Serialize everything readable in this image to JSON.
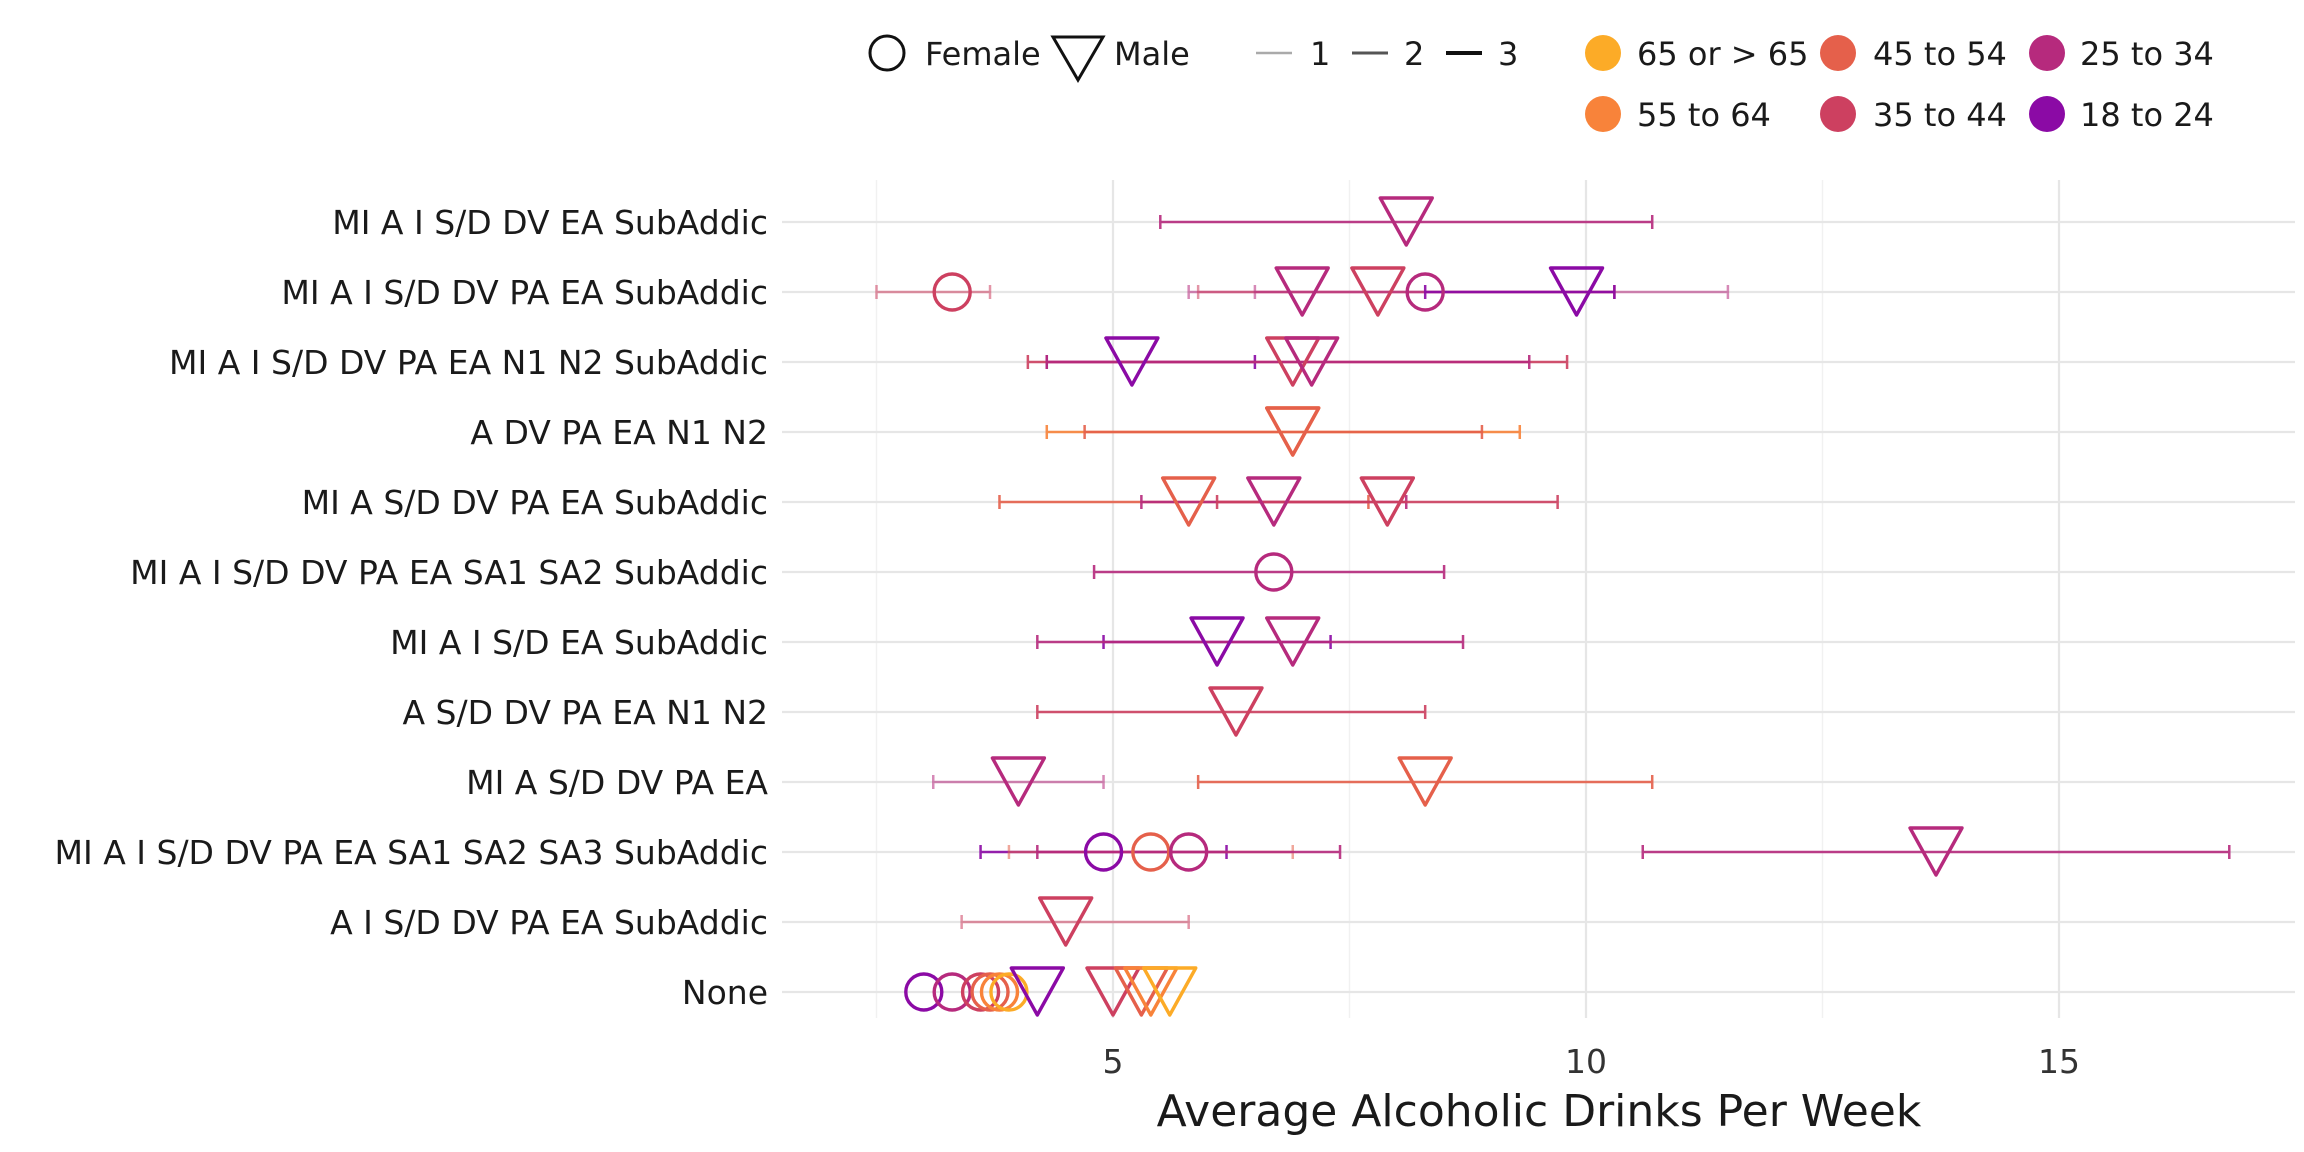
{
  "chart_data": {
    "type": "scatter",
    "xlabel": "Average Alcoholic Drinks Per Week",
    "xlim": [
      0,
      16.7
    ],
    "xticks": [
      5,
      10,
      15
    ],
    "x_minor": [
      2.5,
      7.5,
      12.5
    ],
    "grid": true,
    "legend_position": "top",
    "categories": [
      "MI A I S/D DV EA SubAddic",
      "MI A I S/D DV PA EA SubAddic",
      "MI A I S/D DV PA EA N1 N2 SubAddic",
      "A DV PA EA N1 N2",
      "MI A S/D DV PA EA SubAddic",
      "MI A I S/D DV PA EA SA1 SA2 SubAddic",
      "MI A I S/D EA SubAddic",
      "A S/D DV PA EA N1 N2",
      "MI A S/D DV PA EA",
      "MI A I S/D DV PA EA SA1 SA2 SA3 SubAddic",
      "A I S/D DV PA EA SubAddic",
      "None"
    ],
    "legend": {
      "sex": [
        {
          "key": "female",
          "label": "Female",
          "shape": "circle"
        },
        {
          "key": "male",
          "label": "Male",
          "shape": "triangle-down"
        }
      ],
      "count": [
        {
          "label": "1",
          "width": 2
        },
        {
          "label": "2",
          "width": 3
        },
        {
          "label": "3",
          "width": 4
        }
      ],
      "age": [
        {
          "key": "65+",
          "label": "65 or > 65",
          "color": "#fcab27"
        },
        {
          "key": "45-54",
          "label": "45 to 54",
          "color": "#e5604b"
        },
        {
          "key": "25-34",
          "label": "25 to 34",
          "color": "#b62a7d"
        },
        {
          "key": "55-64",
          "label": "55 to 64",
          "color": "#f8833a"
        },
        {
          "key": "35-44",
          "label": "35 to 44",
          "color": "#cd4060"
        },
        {
          "key": "18-24",
          "label": "18 to 24",
          "color": "#8b0aa5"
        }
      ]
    },
    "points": [
      {
        "cat": 0,
        "x": 8.1,
        "low": 5.5,
        "high": 10.7,
        "sex": "male",
        "age": "25-34"
      },
      {
        "cat": 1,
        "x": 3.3,
        "low": 2.5,
        "high": 3.7,
        "sex": "female",
        "age": "35-44",
        "faint": true
      },
      {
        "cat": 1,
        "x": 7.0,
        "low": 5.8,
        "high": 11.5,
        "sex": "male",
        "age": "25-34",
        "faint": true
      },
      {
        "cat": 1,
        "x": 7.8,
        "low": 5.9,
        "high": 10.3,
        "sex": "male",
        "age": "35-44",
        "faint": true
      },
      {
        "cat": 1,
        "x": 8.3,
        "low": 6.5,
        "high": 10.3,
        "sex": "female",
        "age": "25-34",
        "faint": true
      },
      {
        "cat": 1,
        "x": 9.9,
        "low": 8.3,
        "high": 10.3,
        "sex": "male",
        "age": "18-24"
      },
      {
        "cat": 2,
        "x": 5.2,
        "low": 4.3,
        "high": 6.5,
        "sex": "male",
        "age": "18-24"
      },
      {
        "cat": 2,
        "x": 6.9,
        "low": 4.1,
        "high": 9.8,
        "sex": "male",
        "age": "35-44"
      },
      {
        "cat": 2,
        "x": 7.1,
        "low": 4.3,
        "high": 9.4,
        "sex": "male",
        "age": "25-34"
      },
      {
        "cat": 3,
        "x": 6.9,
        "low": 4.3,
        "high": 9.3,
        "sex": "male",
        "age": "55-64"
      },
      {
        "cat": 3,
        "x": 6.9,
        "low": 4.7,
        "high": 8.9,
        "sex": "male",
        "age": "45-54"
      },
      {
        "cat": 4,
        "x": 5.8,
        "low": 3.8,
        "high": 7.7,
        "sex": "male",
        "age": "45-54"
      },
      {
        "cat": 4,
        "x": 6.7,
        "low": 5.3,
        "high": 8.1,
        "sex": "male",
        "age": "25-34"
      },
      {
        "cat": 4,
        "x": 7.9,
        "low": 6.1,
        "high": 9.7,
        "sex": "male",
        "age": "35-44"
      },
      {
        "cat": 5,
        "x": 6.7,
        "low": 4.8,
        "high": 8.5,
        "sex": "female",
        "age": "25-34"
      },
      {
        "cat": 6,
        "x": 6.1,
        "low": 4.9,
        "high": 7.3,
        "sex": "male",
        "age": "18-24"
      },
      {
        "cat": 6,
        "x": 6.9,
        "low": 4.2,
        "high": 8.7,
        "sex": "male",
        "age": "25-34"
      },
      {
        "cat": 7,
        "x": 6.3,
        "low": 4.2,
        "high": 8.3,
        "sex": "male",
        "age": "35-44"
      },
      {
        "cat": 8,
        "x": 4.0,
        "low": 3.1,
        "high": 4.9,
        "sex": "male",
        "age": "25-34",
        "faint": true
      },
      {
        "cat": 8,
        "x": 8.3,
        "low": 5.9,
        "high": 10.7,
        "sex": "male",
        "age": "45-54"
      },
      {
        "cat": 9,
        "x": 4.9,
        "low": 3.6,
        "high": 6.2,
        "sex": "female",
        "age": "18-24"
      },
      {
        "cat": 9,
        "x": 5.4,
        "low": 3.9,
        "high": 6.9,
        "sex": "female",
        "age": "45-54",
        "faint": true
      },
      {
        "cat": 9,
        "x": 5.8,
        "low": 4.2,
        "high": 7.4,
        "sex": "female",
        "age": "25-34"
      },
      {
        "cat": 9,
        "x": 13.7,
        "low": 10.6,
        "high": 16.8,
        "sex": "male",
        "age": "25-34"
      },
      {
        "cat": 10,
        "x": 4.5,
        "low": 3.4,
        "high": 5.8,
        "sex": "male",
        "age": "35-44",
        "faint": true
      },
      {
        "cat": 11,
        "x": 3.0,
        "sex": "female",
        "age": "18-24"
      },
      {
        "cat": 11,
        "x": 3.3,
        "sex": "female",
        "age": "25-34"
      },
      {
        "cat": 11,
        "x": 3.6,
        "sex": "female",
        "age": "35-44"
      },
      {
        "cat": 11,
        "x": 3.7,
        "sex": "female",
        "age": "45-54"
      },
      {
        "cat": 11,
        "x": 3.8,
        "sex": "female",
        "age": "55-64"
      },
      {
        "cat": 11,
        "x": 3.9,
        "sex": "female",
        "age": "65+"
      },
      {
        "cat": 11,
        "x": 4.2,
        "sex": "male",
        "age": "18-24"
      },
      {
        "cat": 11,
        "x": 5.0,
        "sex": "male",
        "age": "35-44"
      },
      {
        "cat": 11,
        "x": 5.3,
        "sex": "male",
        "age": "45-54"
      },
      {
        "cat": 11,
        "x": 5.4,
        "sex": "male",
        "age": "55-64"
      },
      {
        "cat": 11,
        "x": 5.6,
        "sex": "male",
        "age": "65+"
      }
    ]
  }
}
